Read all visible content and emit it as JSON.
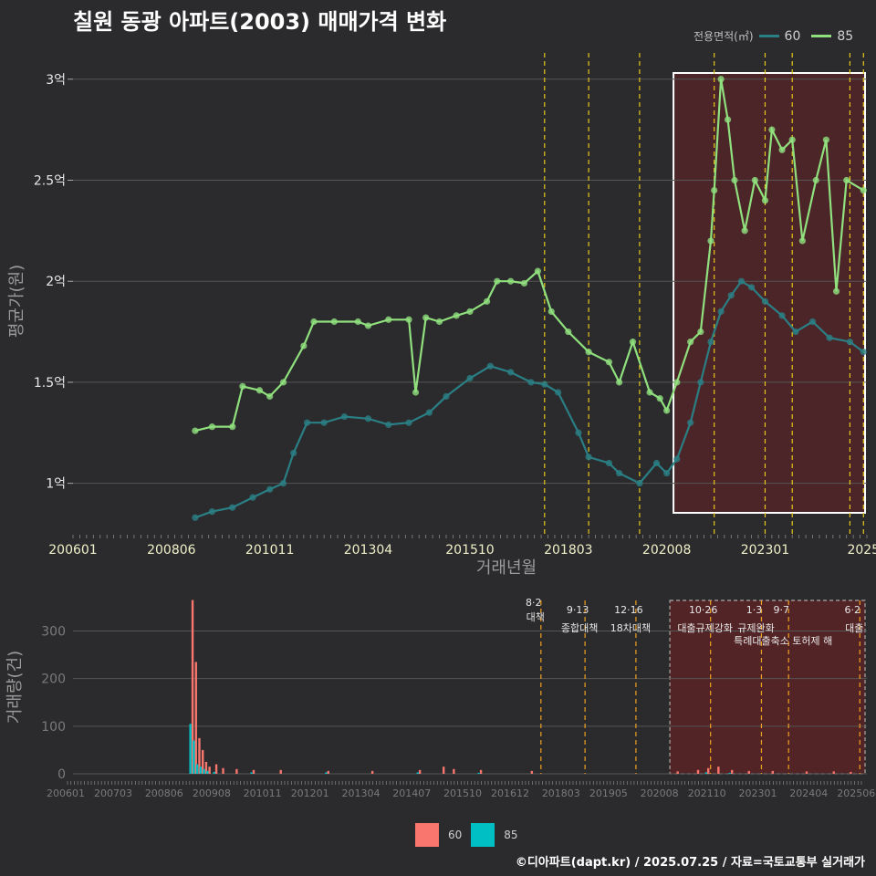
{
  "title": "칠원 동광 아파트(2003) 매매가격 변화",
  "credit": "©디아파트(dapt.kr) / 2025.07.25 / 자료=국토교통부 실거래가",
  "colors": {
    "bg": "#2b2b2d",
    "line60": "#2a7f85",
    "line85": "#90e07e",
    "bar60": "#f8766d",
    "bar85": "#00bfc4",
    "vline": "#e6c619",
    "vline_bottom": "#f0a020",
    "highlight_fill": "#5a2326",
    "grid": "#555555"
  },
  "legend_top": {
    "title": "전용면적(㎡)",
    "items": [
      "60",
      "85"
    ]
  },
  "legend_bottom": {
    "items": [
      "60",
      "85"
    ]
  },
  "chart_data": [
    {
      "type": "line",
      "ylabel": "평균가(원)",
      "xlabel": "거래년월",
      "xticks": [
        "200601",
        "200806",
        "201011",
        "201304",
        "201510",
        "201803",
        "202008",
        "202301",
        "2025"
      ],
      "xtick_months": [
        "2006-01",
        "2008-06",
        "2010-11",
        "2013-04",
        "2015-10",
        "2018-03",
        "2020-08",
        "2023-01",
        "2025-06"
      ],
      "yticks": [
        "1억",
        "1.5억",
        "2억",
        "2.5억",
        "3억"
      ],
      "ytick_values": [
        100000000,
        150000000,
        200000000,
        250000000,
        300000000
      ],
      "ylim": [
        75000000,
        313000000
      ],
      "xlim": [
        "2006-01",
        "2025-07"
      ],
      "highlight": {
        "from": "2020-10",
        "to": "2025-07"
      },
      "event_lines": [
        "2017-08",
        "2018-09",
        "2019-12",
        "2021-10",
        "2023-01",
        "2023-09",
        "2025-02",
        "2025-06"
      ],
      "series": [
        {
          "name": "60",
          "points": [
            [
              "2009-01",
              83000000
            ],
            [
              "2009-06",
              86000000
            ],
            [
              "2009-12",
              88000000
            ],
            [
              "2010-06",
              93000000
            ],
            [
              "2010-11",
              97000000
            ],
            [
              "2011-03",
              100000000
            ],
            [
              "2011-06",
              115000000
            ],
            [
              "2011-10",
              130000000
            ],
            [
              "2012-03",
              130000000
            ],
            [
              "2012-09",
              133000000
            ],
            [
              "2013-04",
              132000000
            ],
            [
              "2013-10",
              129000000
            ],
            [
              "2014-04",
              130000000
            ],
            [
              "2014-10",
              135000000
            ],
            [
              "2015-03",
              143000000
            ],
            [
              "2015-10",
              152000000
            ],
            [
              "2016-04",
              158000000
            ],
            [
              "2016-10",
              155000000
            ],
            [
              "2017-04",
              150000000
            ],
            [
              "2017-08",
              149000000
            ],
            [
              "2017-12",
              145000000
            ],
            [
              "2018-06",
              125000000
            ],
            [
              "2018-09",
              113000000
            ],
            [
              "2019-03",
              110000000
            ],
            [
              "2019-06",
              105000000
            ],
            [
              "2019-12",
              100000000
            ],
            [
              "2020-05",
              110000000
            ],
            [
              "2020-08",
              105000000
            ],
            [
              "2020-11",
              112000000
            ],
            [
              "2021-03",
              130000000
            ],
            [
              "2021-06",
              150000000
            ],
            [
              "2021-09",
              170000000
            ],
            [
              "2021-12",
              185000000
            ],
            [
              "2022-03",
              193000000
            ],
            [
              "2022-06",
              200000000
            ],
            [
              "2022-09",
              197000000
            ],
            [
              "2023-01",
              190000000
            ],
            [
              "2023-06",
              183000000
            ],
            [
              "2023-10",
              175000000
            ],
            [
              "2024-03",
              180000000
            ],
            [
              "2024-08",
              172000000
            ],
            [
              "2025-02",
              170000000
            ],
            [
              "2025-06",
              165000000
            ]
          ]
        },
        {
          "name": "85",
          "points": [
            [
              "2009-01",
              126000000
            ],
            [
              "2009-06",
              128000000
            ],
            [
              "2009-12",
              128000000
            ],
            [
              "2010-03",
              148000000
            ],
            [
              "2010-08",
              146000000
            ],
            [
              "2010-11",
              143000000
            ],
            [
              "2011-03",
              150000000
            ],
            [
              "2011-09",
              168000000
            ],
            [
              "2011-12",
              180000000
            ],
            [
              "2012-06",
              180000000
            ],
            [
              "2013-01",
              180000000
            ],
            [
              "2013-04",
              178000000
            ],
            [
              "2013-10",
              181000000
            ],
            [
              "2014-04",
              181000000
            ],
            [
              "2014-06",
              145000000
            ],
            [
              "2014-09",
              182000000
            ],
            [
              "2015-01",
              180000000
            ],
            [
              "2015-06",
              183000000
            ],
            [
              "2015-10",
              185000000
            ],
            [
              "2016-03",
              190000000
            ],
            [
              "2016-06",
              200000000
            ],
            [
              "2016-10",
              200000000
            ],
            [
              "2017-02",
              199000000
            ],
            [
              "2017-06",
              205000000
            ],
            [
              "2017-10",
              185000000
            ],
            [
              "2018-03",
              175000000
            ],
            [
              "2018-09",
              165000000
            ],
            [
              "2019-03",
              160000000
            ],
            [
              "2019-06",
              150000000
            ],
            [
              "2019-10",
              170000000
            ],
            [
              "2020-03",
              145000000
            ],
            [
              "2020-06",
              142000000
            ],
            [
              "2020-08",
              136000000
            ],
            [
              "2020-11",
              150000000
            ],
            [
              "2021-03",
              170000000
            ],
            [
              "2021-06",
              175000000
            ],
            [
              "2021-09",
              220000000
            ],
            [
              "2021-10",
              245000000
            ],
            [
              "2021-12",
              300000000
            ],
            [
              "2022-02",
              280000000
            ],
            [
              "2022-04",
              250000000
            ],
            [
              "2022-07",
              225000000
            ],
            [
              "2022-10",
              250000000
            ],
            [
              "2023-01",
              240000000
            ],
            [
              "2023-03",
              275000000
            ],
            [
              "2023-06",
              265000000
            ],
            [
              "2023-09",
              270000000
            ],
            [
              "2023-12",
              220000000
            ],
            [
              "2024-04",
              250000000
            ],
            [
              "2024-07",
              270000000
            ],
            [
              "2024-10",
              195000000
            ],
            [
              "2025-01",
              250000000
            ],
            [
              "2025-06",
              245000000
            ]
          ]
        }
      ]
    },
    {
      "type": "bar",
      "ylabel": "거래량(건)",
      "yticks": [
        "0",
        "100",
        "200",
        "300"
      ],
      "ytick_values": [
        0,
        100,
        200,
        300
      ],
      "ylim": [
        0,
        370
      ],
      "xticks": [
        "200601",
        "200703",
        "200806",
        "200908",
        "201011",
        "201201",
        "201304",
        "201407",
        "201510",
        "201612",
        "201803",
        "201905",
        "202008",
        "202110",
        "202301",
        "202404",
        "202506"
      ],
      "xtick_months": [
        "2006-01",
        "2007-03",
        "2008-06",
        "2009-08",
        "2010-11",
        "2012-01",
        "2013-04",
        "2014-07",
        "2015-10",
        "2016-12",
        "2018-03",
        "2019-05",
        "2020-08",
        "2021-10",
        "2023-01",
        "2024-04",
        "2025-06"
      ],
      "highlight": {
        "from": "2020-10",
        "to": "2025-07"
      },
      "annotations": [
        {
          "month": "2017-08",
          "date": "8·2",
          "text": "대책",
          "row": 0
        },
        {
          "month": "2018-09",
          "date": "9·13",
          "text": "종합대책",
          "row": 1
        },
        {
          "month": "2019-12",
          "date": "12·16",
          "text": "18차대책",
          "row": 1
        },
        {
          "month": "2021-10",
          "date": "10·26",
          "text": "대출규제강화",
          "row": 1
        },
        {
          "month": "2023-01",
          "date": "1·3",
          "text": "규제완화",
          "row": 1
        },
        {
          "month": "2023-09",
          "date": "9·7",
          "text": "특례대출축소 토허제 해",
          "row": 2
        },
        {
          "month": "2025-06",
          "date": "6·2",
          "text": "대출",
          "row": 1
        }
      ],
      "series": [
        {
          "name": "60",
          "months": [
            "2009-01",
            "2009-02",
            "2009-03",
            "2009-04",
            "2009-05",
            "2009-06",
            "2009-08",
            "2009-10",
            "2010-02",
            "2010-07",
            "2011-03",
            "2012-05",
            "2013-06",
            "2014-08",
            "2015-03",
            "2015-06",
            "2016-02",
            "2017-05",
            "2020-12",
            "2021-06",
            "2021-09",
            "2021-12",
            "2022-04",
            "2022-09",
            "2023-04",
            "2024-02",
            "2024-10",
            "2025-03"
          ],
          "values": [
            365,
            235,
            75,
            50,
            25,
            15,
            20,
            12,
            10,
            8,
            8,
            6,
            6,
            8,
            15,
            10,
            8,
            6,
            5,
            8,
            12,
            15,
            8,
            6,
            6,
            5,
            5,
            4
          ]
        },
        {
          "name": "85",
          "months": [
            "2009-01",
            "2009-02",
            "2009-03",
            "2009-04",
            "2009-05",
            "2009-06",
            "2009-08",
            "2010-07",
            "2012-05",
            "2014-08",
            "2016-02",
            "2021-09",
            "2022-04"
          ],
          "values": [
            105,
            70,
            20,
            15,
            10,
            6,
            4,
            3,
            3,
            3,
            2,
            3,
            2
          ]
        }
      ]
    }
  ]
}
